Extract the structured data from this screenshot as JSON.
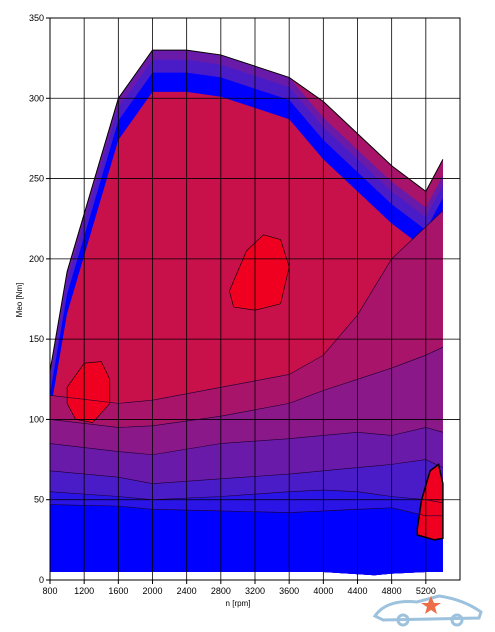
{
  "chart_data": {
    "type": "heatmap",
    "title": "",
    "xlabel": "n [rpm]",
    "ylabel": "Meo [Nm]",
    "xlim": [
      800,
      5600
    ],
    "ylim": [
      0,
      350
    ],
    "x_ticks": [
      800,
      1200,
      1600,
      2000,
      2400,
      2800,
      3200,
      3600,
      4000,
      4400,
      4800,
      5200
    ],
    "y_ticks": [
      0,
      50,
      100,
      150,
      200,
      250,
      300,
      350
    ],
    "x_tick_labels": [
      "800",
      "1200",
      "1600",
      "2000",
      "2400",
      "2800",
      "3200",
      "3600",
      "4000",
      "4400",
      "4800",
      "5200"
    ],
    "y_tick_labels": [
      "0",
      "50",
      "100",
      "150",
      "200",
      "250",
      "300",
      "350"
    ],
    "grid": true,
    "colormap": [
      "#0000ff",
      "#2a14e6",
      "#4a1cc8",
      "#6a1aa8",
      "#8a1888",
      "#a8146a",
      "#c8104a",
      "#e00a30",
      "#f00020"
    ],
    "max_torque_curve": {
      "x": [
        800,
        1000,
        1600,
        2000,
        2400,
        2800,
        3200,
        3600,
        4000,
        4400,
        4800,
        5200,
        5400
      ],
      "y": [
        130,
        192,
        300,
        330,
        330,
        327,
        320,
        313,
        298,
        278,
        258,
        242,
        262
      ]
    },
    "low_load_floor": {
      "x": [
        800,
        2000,
        4000,
        4600,
        4800,
        5200,
        5400
      ],
      "y": [
        5,
        5,
        5,
        3,
        4,
        5,
        5
      ]
    },
    "contour_levels": [
      {
        "level": 1,
        "x": [
          800,
          1600,
          2000,
          2800,
          3600,
          4000,
          4400,
          4800,
          5200,
          5400
        ],
        "y": [
          47,
          46,
          44,
          43,
          42,
          43,
          44,
          45,
          40,
          40
        ]
      },
      {
        "level": 2,
        "x": [
          800,
          1600,
          2000,
          2800,
          3600,
          4000,
          4400,
          4800,
          5200,
          5400
        ],
        "y": [
          55,
          52,
          50,
          52,
          55,
          56,
          55,
          52,
          50,
          48
        ]
      },
      {
        "level": 3,
        "x": [
          800,
          1600,
          2000,
          2800,
          3600,
          4000,
          4400,
          4800,
          5200,
          5400
        ],
        "y": [
          68,
          64,
          60,
          63,
          66,
          68,
          70,
          72,
          75,
          70
        ]
      },
      {
        "level": 4,
        "x": [
          800,
          1600,
          2000,
          2800,
          3600,
          4000,
          4400,
          4800,
          5200,
          5400
        ],
        "y": [
          85,
          80,
          78,
          85,
          88,
          90,
          92,
          90,
          95,
          92
        ]
      },
      {
        "level": 5,
        "x": [
          800,
          1600,
          2000,
          2800,
          3600,
          4000,
          4400,
          4800,
          5200,
          5400
        ],
        "y": [
          100,
          95,
          96,
          102,
          110,
          118,
          125,
          132,
          140,
          145
        ]
      },
      {
        "level": 6,
        "x": [
          800,
          1600,
          2000,
          2800,
          3600,
          4000,
          4400,
          4800,
          5200,
          5400
        ],
        "y": [
          115,
          110,
          112,
          120,
          128,
          140,
          165,
          200,
          220,
          230
        ]
      }
    ],
    "islands": [
      {
        "level": 8,
        "x": [
          1000,
          1200,
          1400,
          1500,
          1500,
          1300,
          1100,
          1000
        ],
        "y": [
          120,
          135,
          136,
          125,
          110,
          98,
          100,
          110
        ]
      },
      {
        "level": 8,
        "x": [
          2900,
          3100,
          3300,
          3500,
          3600,
          3500,
          3200,
          2950
        ],
        "y": [
          180,
          205,
          215,
          212,
          195,
          172,
          168,
          170
        ]
      },
      {
        "level": 8,
        "x": [
          5100,
          5150,
          5250,
          5350,
          5400,
          5400,
          5300,
          5100
        ],
        "y": [
          32,
          50,
          68,
          72,
          60,
          26,
          25,
          28
        ]
      }
    ]
  }
}
